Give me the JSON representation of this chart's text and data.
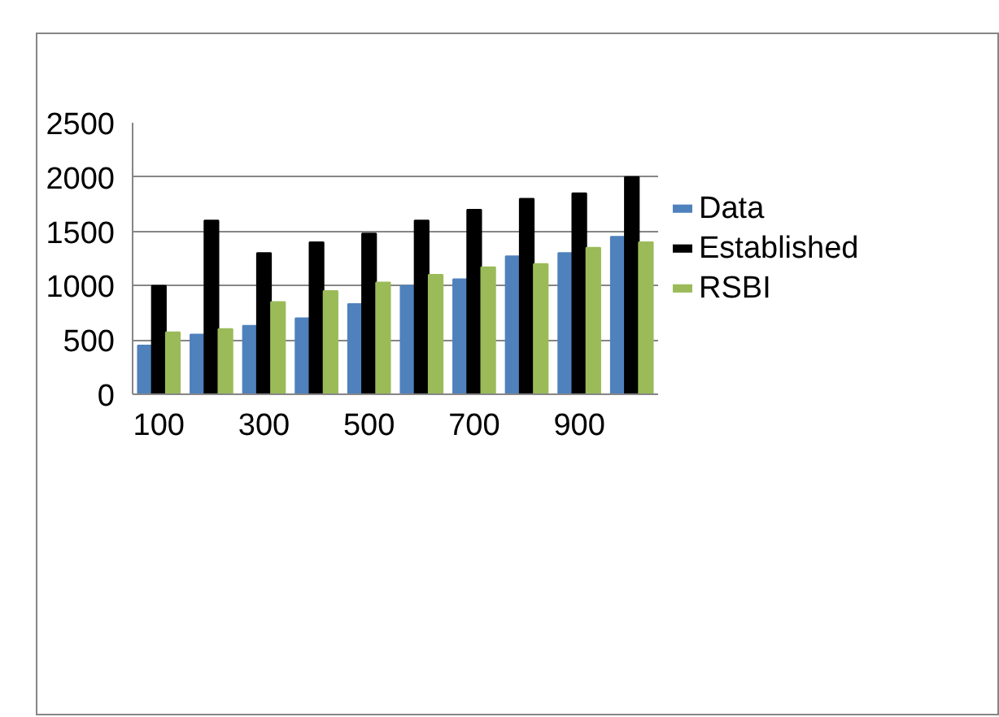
{
  "chart_data": {
    "type": "bar",
    "categories": [
      "100",
      null,
      "300",
      null,
      "500",
      null,
      "700",
      null,
      "900",
      null
    ],
    "series": [
      {
        "name": "Data",
        "color": "#4f81bd",
        "values": [
          450,
          550,
          630,
          700,
          830,
          1000,
          1060,
          1270,
          1300,
          1450
        ]
      },
      {
        "name": "Established",
        "color": "#000000",
        "values": [
          1000,
          1600,
          1300,
          1400,
          1480,
          1600,
          1700,
          1800,
          1850,
          2000
        ]
      },
      {
        "name": "RSBI",
        "color": "#9bbb59",
        "values": [
          570,
          600,
          850,
          950,
          1030,
          1100,
          1170,
          1200,
          1350,
          1400
        ]
      }
    ],
    "ylim": [
      0,
      2500
    ],
    "yticks": [
      0,
      500,
      1000,
      1500,
      2000,
      2500
    ],
    "grid": "y",
    "legend": "right"
  }
}
